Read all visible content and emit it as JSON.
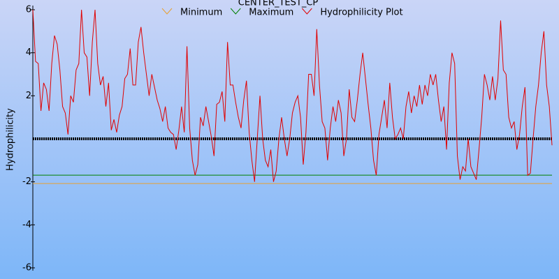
{
  "chart_data": {
    "type": "line",
    "title": "CENTER_TEST_CP",
    "y_label": "Hydrophilicity",
    "ylim": [
      -6,
      6
    ],
    "yticks": [
      -6,
      -4,
      -2,
      2,
      4,
      6
    ],
    "zero_line": true,
    "series": [
      {
        "name": "Minimum",
        "color": "#e8a030",
        "value": -2.08
      },
      {
        "name": "Maximum",
        "color": "#008000",
        "value": -1.69
      },
      {
        "name": "Hydrophilicity Plot",
        "color": "#e00000",
        "values": [
          6,
          3.6,
          3.5,
          1.3,
          2.6,
          2.3,
          1.3,
          3.5,
          4.8,
          4.4,
          3.2,
          1.5,
          1.2,
          0.2,
          2,
          1.7,
          3.2,
          3.5,
          6,
          4,
          3.8,
          2,
          4.5,
          6,
          3.5,
          2.5,
          2.9,
          1.5,
          2.6,
          0.4,
          0.9,
          0.3,
          1.1,
          1.5,
          2.8,
          3,
          4.2,
          2.5,
          2.5,
          4.5,
          5.2,
          4,
          3,
          2,
          3,
          2.4,
          1.8,
          1.4,
          0.8,
          1.5,
          0.5,
          0.3,
          0.2,
          -0.5,
          0.4,
          1.5,
          0.3,
          4.3,
          0.5,
          -1,
          -1.7,
          -1.2,
          1,
          0.6,
          1.5,
          0.8,
          0.1,
          -0.8,
          1.6,
          1.7,
          2.2,
          0.8,
          4.5,
          2.5,
          2.5,
          1.7,
          1,
          0.5,
          1.8,
          2.7,
          0.3,
          -1,
          -2,
          0,
          2,
          0,
          -1,
          -1.3,
          -0.5,
          -2,
          -1.5,
          0,
          1,
          0,
          -0.8,
          0,
          1.2,
          1.7,
          2,
          1,
          -1.2,
          0.3,
          3,
          3,
          2,
          5.1,
          2.5,
          0.8,
          0.5,
          -1,
          0.5,
          1.5,
          0.8,
          1.8,
          1.2,
          -0.8,
          0,
          2.3,
          1,
          0.8,
          1.8,
          3,
          4,
          2.8,
          1.6,
          0.5,
          -1,
          -1.7,
          0.2,
          1,
          1.8,
          0.5,
          2.6,
          1,
          0,
          0.2,
          0.5,
          0,
          1.5,
          2.2,
          1.2,
          2,
          1.5,
          2.5,
          1.6,
          2.5,
          2,
          3,
          2.5,
          3,
          1.8,
          0.8,
          1.5,
          -0.5,
          2.6,
          4,
          3.5,
          -0.8,
          -1.9,
          -1.3,
          -1.5,
          0,
          -1.3,
          -1.6,
          -1.9,
          -0.5,
          1,
          3,
          2.5,
          1.8,
          2.9,
          1.8,
          2.8,
          5.5,
          3.2,
          3,
          1,
          0.5,
          0.8,
          -0.5,
          0.2,
          1.5,
          2.4,
          -1.7,
          -1.6,
          0,
          1.5,
          2.5,
          4,
          5,
          2.5,
          1.5,
          -0.3
        ]
      }
    ]
  }
}
